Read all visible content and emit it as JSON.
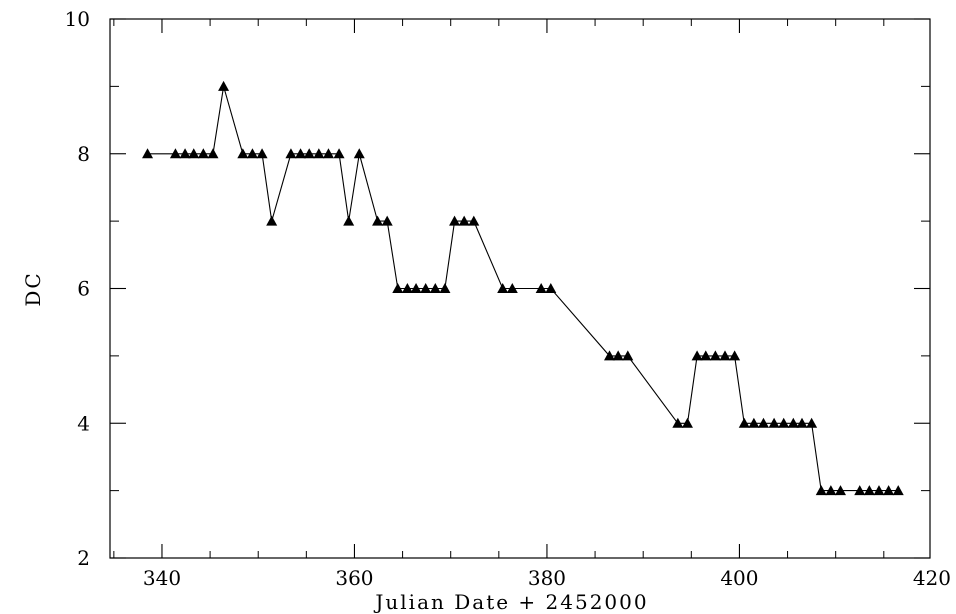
{
  "chart_data": {
    "type": "line",
    "title": "",
    "xlabel": "Julian Date + 2452000",
    "ylabel": "DC",
    "xlim": [
      334.6,
      419.8
    ],
    "ylim": [
      2,
      10
    ],
    "xticks": [
      340,
      360,
      380,
      400,
      420
    ],
    "yticks": [
      2,
      4,
      6,
      8,
      10
    ],
    "marker": "filled-triangle",
    "line_color": "#000000",
    "grid": false,
    "legend": "none",
    "series": [
      {
        "x": [
          338.5,
          341.4,
          342.4,
          343.3,
          344.3,
          345.3,
          346.4,
          348.4,
          349.4,
          350.4,
          351.4,
          353.4,
          354.4,
          355.3,
          356.3,
          357.3,
          358.4,
          359.4,
          360.5,
          362.4,
          363.4,
          364.5,
          365.5,
          366.4,
          367.4,
          368.4,
          369.4,
          370.4,
          371.4,
          372.4,
          375.4,
          376.4,
          379.4,
          380.4,
          386.5,
          387.4,
          388.4,
          393.6,
          394.6,
          395.6,
          396.5,
          397.5,
          398.5,
          399.5,
          400.5,
          401.5,
          402.5,
          403.6,
          404.6,
          405.6,
          406.5,
          407.5,
          408.5,
          409.5,
          410.5,
          412.5,
          413.5,
          414.5,
          415.5,
          416.5
        ],
        "y": [
          8,
          8,
          8,
          8,
          8,
          8,
          9,
          8,
          8,
          8,
          7,
          8,
          8,
          8,
          8,
          8,
          8,
          7,
          8,
          7,
          7,
          6,
          6,
          6,
          6,
          6,
          6,
          7,
          7,
          7,
          6,
          6,
          6,
          6,
          5,
          5,
          5,
          4,
          4,
          5,
          5,
          5,
          5,
          5,
          4,
          4,
          4,
          4,
          4,
          4,
          4,
          4,
          3,
          3,
          3,
          3,
          3,
          3,
          3,
          3
        ]
      }
    ]
  }
}
